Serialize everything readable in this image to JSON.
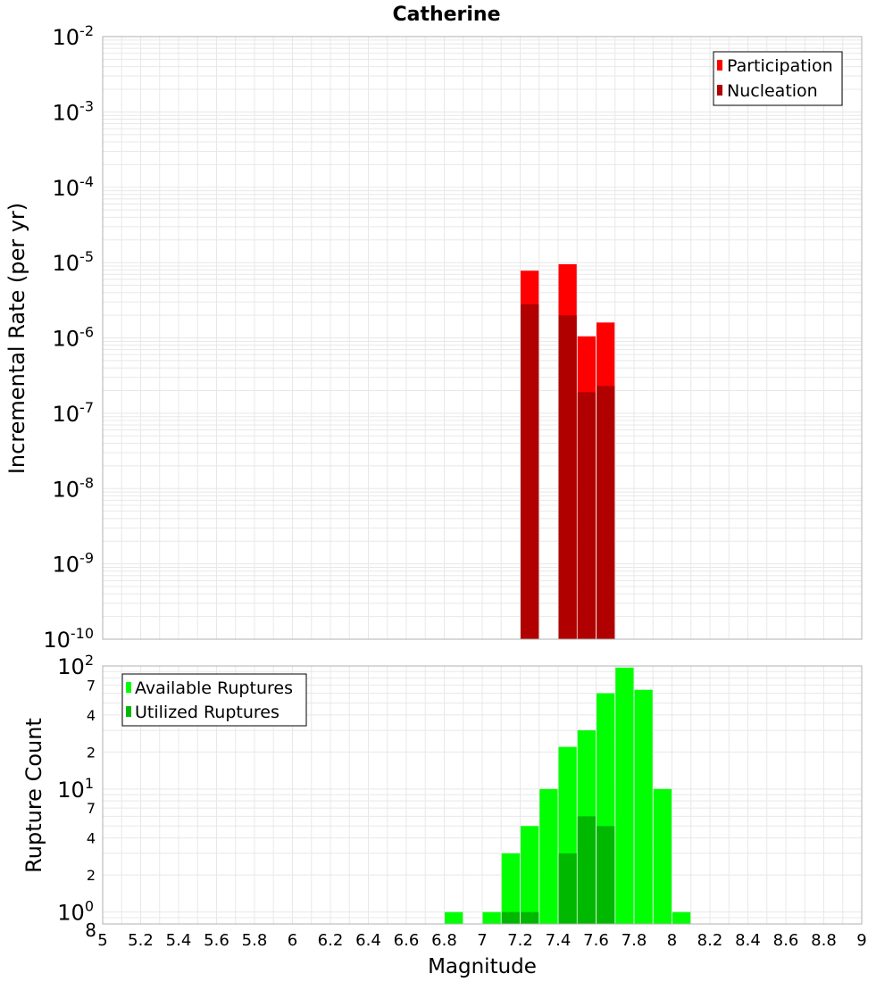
{
  "colors": {
    "participation": "#ff0000",
    "nucleation": "#b00000",
    "available": "#00ff00",
    "utilized": "#00b800",
    "grid": "#e8e8e8",
    "frame": "#b0b0b0"
  },
  "chart_data": [
    {
      "type": "bar",
      "title": "Catherine",
      "xlabel": "Magnitude",
      "ylabel": "Incremental Rate (per yr)",
      "xlim": [
        5,
        9
      ],
      "yscale": "log",
      "ylim": [
        1e-10,
        0.01
      ],
      "y_tick_bases": [
        "10",
        "10",
        "10",
        "10",
        "10",
        "10",
        "10",
        "10",
        "10"
      ],
      "y_tick_exponents": [
        "-10",
        "-9",
        "-8",
        "-7",
        "-6",
        "-5",
        "-4",
        "-3",
        "-2"
      ],
      "legend": {
        "position": "top-right",
        "items": [
          "Participation",
          "Nucleation"
        ]
      },
      "series": [
        {
          "name": "Participation",
          "x": [
            7.25,
            7.45,
            7.55,
            7.65
          ],
          "values": [
            7.8e-06,
            9.5e-06,
            1.05e-06,
            1.6e-06
          ]
        },
        {
          "name": "Nucleation",
          "x": [
            7.25,
            7.45,
            7.55,
            7.65
          ],
          "values": [
            2.8e-06,
            2e-06,
            1.9e-07,
            2.3e-07
          ]
        }
      ]
    },
    {
      "type": "bar",
      "title": "",
      "xlabel": "Magnitude",
      "ylabel": "Rupture Count",
      "xlim": [
        5,
        9
      ],
      "yscale": "log",
      "ylim": [
        0.8,
        100
      ],
      "x_ticks": [
        "5",
        "5.2",
        "5.4",
        "5.6",
        "5.8",
        "6",
        "6.2",
        "6.4",
        "6.6",
        "6.8",
        "7",
        "7.2",
        "7.4",
        "7.6",
        "7.8",
        "8",
        "8.2",
        "8.4",
        "8.6",
        "8.8",
        "9"
      ],
      "y_major_ticks": [
        {
          "value": 1,
          "base": "10",
          "exp": "0"
        },
        {
          "value": 10,
          "base": "10",
          "exp": "1"
        },
        {
          "value": 100,
          "base": "10",
          "exp": "2"
        }
      ],
      "y_minor_ticks": [
        {
          "value": 0.8,
          "label": "8"
        },
        {
          "value": 2,
          "label": "2"
        },
        {
          "value": 4,
          "label": "4"
        },
        {
          "value": 7,
          "label": "7"
        },
        {
          "value": 20,
          "label": "2"
        },
        {
          "value": 40,
          "label": "4"
        },
        {
          "value": 70,
          "label": "7"
        }
      ],
      "legend": {
        "position": "top-left",
        "items": [
          "Available Ruptures",
          "Utilized Ruptures"
        ]
      },
      "series": [
        {
          "name": "Available Ruptures",
          "x": [
            6.85,
            7.05,
            7.15,
            7.25,
            7.35,
            7.45,
            7.55,
            7.65,
            7.75,
            7.85,
            7.95,
            8.05
          ],
          "values": [
            1,
            1,
            3,
            5,
            10,
            22,
            30,
            60,
            97,
            64,
            10,
            1
          ]
        },
        {
          "name": "Utilized Ruptures",
          "x": [
            7.15,
            7.25,
            7.45,
            7.55,
            7.65
          ],
          "values": [
            1,
            1,
            3,
            6,
            5
          ]
        }
      ]
    }
  ]
}
